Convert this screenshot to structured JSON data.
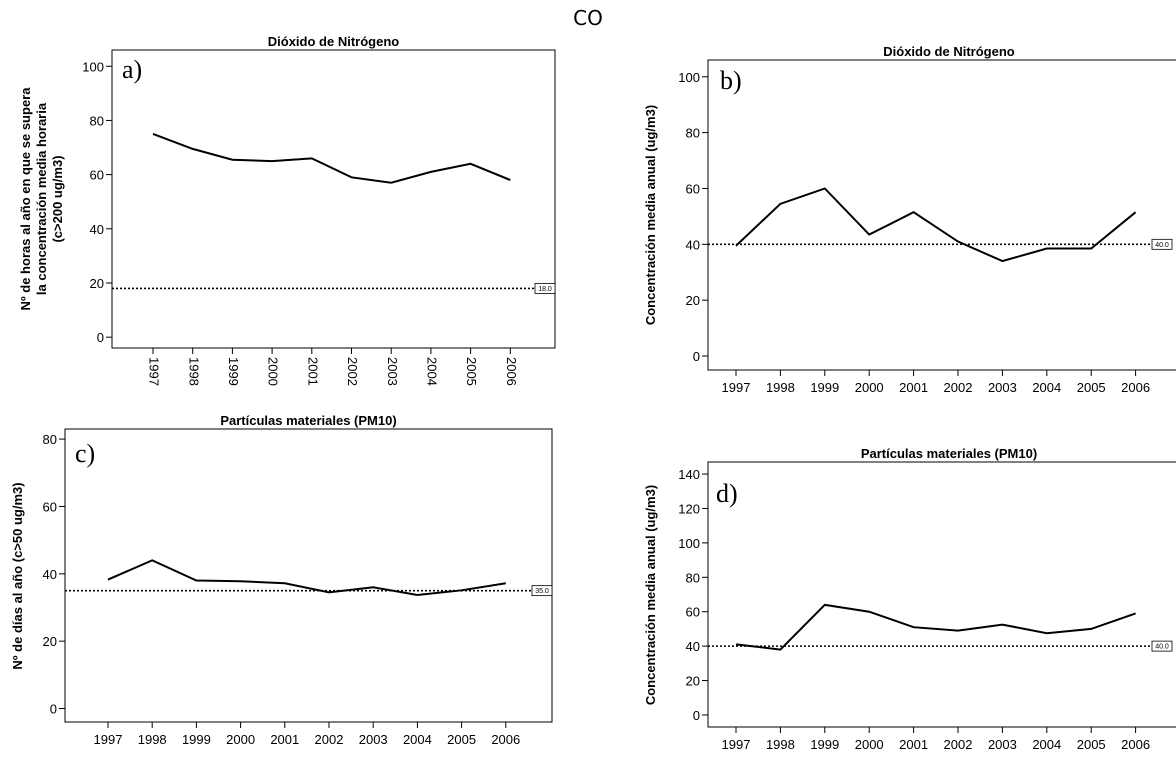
{
  "figure_title": "CO",
  "chart_data": [
    {
      "type": "line",
      "panel_letter": "a)",
      "title": "Dióxido de Nitrógeno",
      "ylabel_lines": [
        "Nº de horas al año en que se supera",
        "la concentración media horaria",
        "(c>200 ug/m3)"
      ],
      "xlabel": "",
      "x": [
        "1997",
        "1998",
        "1999",
        "2000",
        "2001",
        "2002",
        "2003",
        "2004",
        "2005",
        "2006"
      ],
      "values": [
        75,
        69.5,
        65.5,
        65,
        66,
        59,
        57,
        61,
        64,
        58
      ],
      "ylim": [
        -4,
        106
      ],
      "yticks": [
        0,
        20,
        40,
        60,
        80,
        100
      ],
      "reference_line": 18,
      "reference_label": "18.0",
      "xtick_rotation": "vertical",
      "grid": false,
      "color": "#000000"
    },
    {
      "type": "line",
      "panel_letter": "b)",
      "title": "Dióxido de Nitrógeno",
      "ylabel_lines": [
        "Concentración media anual (ug/m3)"
      ],
      "xlabel": "",
      "x": [
        "1997",
        "1998",
        "1999",
        "2000",
        "2001",
        "2002",
        "2003",
        "2004",
        "2005",
        "2006"
      ],
      "values": [
        39.5,
        54.5,
        60,
        43.5,
        51.5,
        41,
        34,
        38.5,
        38.5,
        51.5
      ],
      "ylim": [
        -5,
        106
      ],
      "yticks": [
        0,
        20,
        40,
        60,
        80,
        100
      ],
      "reference_line": 40,
      "reference_label": "40.0",
      "grid": false,
      "color": "#000000"
    },
    {
      "type": "line",
      "panel_letter": "c)",
      "title": "Partículas materiales (PM10)",
      "ylabel_lines": [
        "Nº de días al año (c>50 ug/m3)"
      ],
      "xlabel": "",
      "x": [
        "1997",
        "1998",
        "1999",
        "2000",
        "2001",
        "2002",
        "2003",
        "2004",
        "2005",
        "2006"
      ],
      "values": [
        38.3,
        44,
        38,
        37.8,
        37.2,
        34.5,
        36,
        33.7,
        35.1,
        37.2
      ],
      "ylim": [
        -4,
        83
      ],
      "yticks": [
        0,
        20,
        40,
        60,
        80
      ],
      "reference_line": 35,
      "reference_label": "35.0",
      "grid": false,
      "color": "#000000"
    },
    {
      "type": "line",
      "panel_letter": "d)",
      "title": "Partículas materiales (PM10)",
      "ylabel_lines": [
        "Concentración media anual (ug/m3)"
      ],
      "xlabel": "",
      "x": [
        "1997",
        "1998",
        "1999",
        "2000",
        "2001",
        "2002",
        "2003",
        "2004",
        "2005",
        "2006"
      ],
      "values": [
        41,
        38,
        64,
        60,
        51,
        49,
        52.5,
        47.5,
        50,
        59
      ],
      "ylim": [
        -7,
        147
      ],
      "yticks": [
        0,
        20,
        40,
        60,
        80,
        100,
        120,
        140
      ],
      "reference_line": 40,
      "reference_label": "40.0",
      "grid": false,
      "color": "#000000"
    }
  ]
}
